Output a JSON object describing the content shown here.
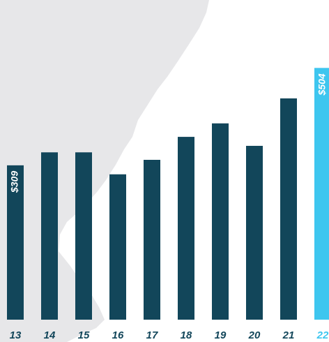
{
  "chart_data": {
    "type": "bar",
    "categories": [
      "13",
      "14",
      "15",
      "16",
      "17",
      "18",
      "19",
      "20",
      "21",
      "22"
    ],
    "values": [
      309,
      335,
      335,
      291,
      320,
      366,
      393,
      348,
      443,
      504
    ],
    "value_labels": [
      "$309",
      null,
      null,
      null,
      null,
      null,
      null,
      null,
      null,
      "$504"
    ],
    "colors": [
      "#12465a",
      "#12465a",
      "#12465a",
      "#12465a",
      "#12465a",
      "#12465a",
      "#12465a",
      "#12465a",
      "#12465a",
      "#3ec6ef"
    ],
    "ylim": [
      0,
      640
    ]
  }
}
